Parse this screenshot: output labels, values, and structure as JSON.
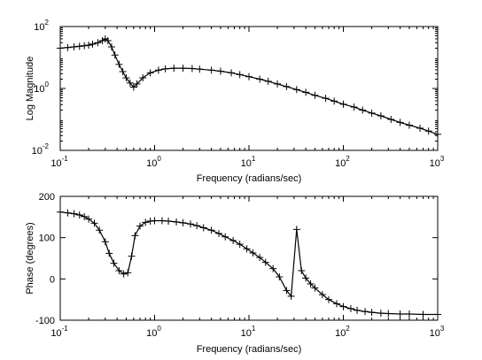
{
  "chart_data": [
    {
      "type": "line",
      "title": "",
      "xlabel": "Frequency (radians/sec)",
      "ylabel": "Log Magnitude",
      "xscale": "log",
      "yscale": "log",
      "xlim": [
        0.1,
        1000
      ],
      "ylim": [
        0.01,
        100
      ],
      "grid": false,
      "legend": "none",
      "marker": "+",
      "x_ticks": [
        {
          "base": "10",
          "exp": "-1"
        },
        {
          "base": "10",
          "exp": "0"
        },
        {
          "base": "10",
          "exp": "1"
        },
        {
          "base": "10",
          "exp": "2"
        },
        {
          "base": "10",
          "exp": "3"
        }
      ],
      "y_ticks": [
        {
          "base": "10",
          "exp": "-2"
        },
        {
          "base": "10",
          "exp": "0"
        },
        {
          "base": "10",
          "exp": "2"
        }
      ],
      "series": [
        {
          "x": [
            0.1,
            0.12,
            0.14,
            0.16,
            0.18,
            0.2,
            0.22,
            0.25,
            0.28,
            0.3,
            0.32,
            0.35,
            0.38,
            0.42,
            0.46,
            0.5,
            0.55,
            0.6,
            0.65,
            0.75,
            0.9,
            1.1,
            1.3,
            1.6,
            2,
            2.5,
            3,
            4,
            5,
            6.5,
            8,
            10,
            13,
            16,
            20,
            25,
            32,
            40,
            50,
            65,
            80,
            100,
            130,
            160,
            200,
            250,
            320,
            400,
            500,
            650,
            800,
            1000
          ],
          "values": [
            20,
            21,
            22,
            23,
            24,
            25,
            27,
            30,
            35,
            40,
            35,
            22,
            12,
            6,
            3.5,
            2.2,
            1.5,
            1.1,
            1.4,
            2.2,
            3.2,
            3.9,
            4.3,
            4.5,
            4.5,
            4.4,
            4.2,
            3.9,
            3.6,
            3.2,
            2.8,
            2.4,
            2,
            1.7,
            1.4,
            1.15,
            0.92,
            0.75,
            0.6,
            0.48,
            0.39,
            0.31,
            0.25,
            0.2,
            0.16,
            0.13,
            0.1,
            0.08,
            0.065,
            0.052,
            0.042,
            0.033
          ]
        }
      ]
    },
    {
      "type": "line",
      "title": "",
      "xlabel": "Frequency (radians/sec)",
      "ylabel": "Phase (degrees)",
      "xscale": "log",
      "yscale": "linear",
      "xlim": [
        0.1,
        1000
      ],
      "ylim": [
        -100,
        200
      ],
      "grid": false,
      "legend": "none",
      "marker": "+",
      "x_ticks": [
        {
          "base": "10",
          "exp": "-1"
        },
        {
          "base": "10",
          "exp": "0"
        },
        {
          "base": "10",
          "exp": "1"
        },
        {
          "base": "10",
          "exp": "2"
        },
        {
          "base": "10",
          "exp": "3"
        }
      ],
      "y_ticks": [
        {
          "value": -100,
          "label": "-100"
        },
        {
          "value": 0,
          "label": "0"
        },
        {
          "value": 100,
          "label": "100"
        },
        {
          "value": 200,
          "label": "200"
        }
      ],
      "series": [
        {
          "x": [
            0.1,
            0.12,
            0.14,
            0.16,
            0.18,
            0.2,
            0.23,
            0.26,
            0.3,
            0.33,
            0.37,
            0.42,
            0.47,
            0.52,
            0.57,
            0.62,
            0.7,
            0.8,
            0.9,
            1,
            1.2,
            1.4,
            1.7,
            2,
            2.4,
            2.8,
            3.3,
            4,
            4.8,
            5.6,
            6.8,
            8,
            9.5,
            11,
            13,
            15,
            18,
            21,
            25,
            28,
            32,
            36,
            40,
            45,
            50,
            60,
            70,
            85,
            100,
            120,
            140,
            170,
            200,
            250,
            300,
            400,
            500,
            700,
            1000
          ],
          "values": [
            162,
            160,
            158,
            155,
            151,
            145,
            135,
            118,
            90,
            62,
            38,
            20,
            12,
            15,
            55,
            105,
            128,
            137,
            140,
            141,
            141,
            140,
            138,
            136,
            133,
            129,
            124,
            118,
            110,
            102,
            93,
            84,
            73,
            63,
            52,
            40,
            25,
            5,
            -28,
            -42,
            120,
            20,
            2,
            -12,
            -22,
            -38,
            -50,
            -60,
            -67,
            -72,
            -76,
            -79,
            -81,
            -83,
            -84,
            -85,
            -85,
            -86,
            -86
          ]
        }
      ]
    }
  ]
}
